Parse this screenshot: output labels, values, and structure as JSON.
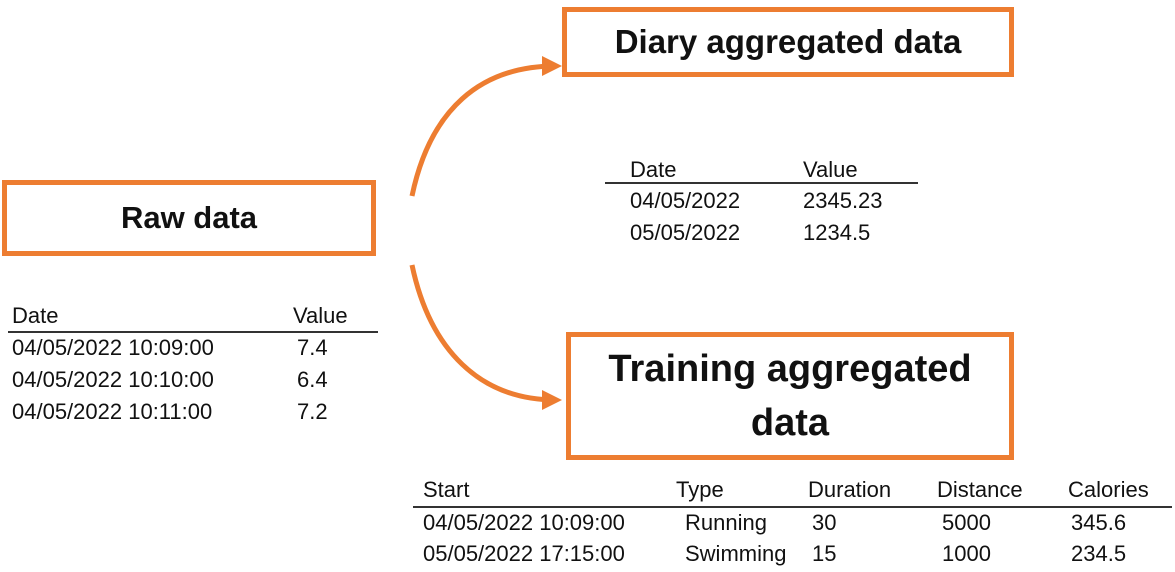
{
  "raw": {
    "title": "Raw data",
    "table": {
      "columns": [
        "Date",
        "Value"
      ],
      "rows": [
        [
          "04/05/2022 10:09:00",
          7.4
        ],
        [
          "04/05/2022 10:10:00",
          6.4
        ],
        [
          "04/05/2022 10:11:00",
          7.2
        ]
      ]
    }
  },
  "diary": {
    "title": "Diary aggregated data",
    "table": {
      "columns": [
        "Date",
        "Value"
      ],
      "rows": [
        [
          "04/05/2022",
          2345.23
        ],
        [
          "05/05/2022",
          1234.5
        ]
      ]
    }
  },
  "training": {
    "title": "Training aggregated data",
    "table": {
      "columns": [
        "Start",
        "Type",
        "Duration",
        "Distance",
        "Calories"
      ],
      "rows": [
        [
          "04/05/2022 10:09:00",
          "Running",
          30,
          5000,
          345.6
        ],
        [
          "05/05/2022 17:15:00",
          "Swimming",
          15,
          1000,
          234.5
        ]
      ]
    }
  }
}
